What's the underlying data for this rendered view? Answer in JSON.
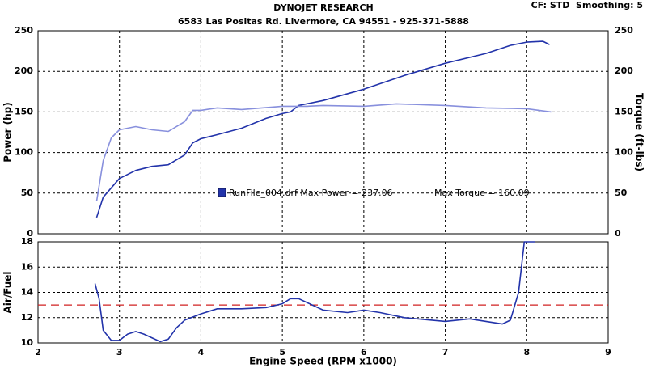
{
  "header": {
    "title": "DYNOJET RESEARCH",
    "address": "6583 Las Positas Rd. Livermore, CA 94551 - 925-371-5888",
    "settings": "CF: STD  Smoothing: 5"
  },
  "chart_data": [
    {
      "type": "line",
      "y_label": "Power (hp)",
      "y2_label": "Torque (ft-lbs)",
      "annotations": [
        "RunFile_004.drf Max Power = 237.06",
        "Max Torque = 160.09"
      ],
      "legend_color": "#2233aa",
      "xlim": [
        2,
        9
      ],
      "ylim": [
        0,
        250
      ],
      "yticks": [
        0,
        50,
        100,
        150,
        200,
        250
      ],
      "y2lim": [
        0,
        250
      ],
      "y2ticks": [
        0,
        50,
        100,
        150,
        200,
        250
      ],
      "grid": true,
      "series": [
        {
          "color": "#2233aa",
          "x": [
            2.72,
            2.8,
            3.0,
            3.2,
            3.4,
            3.6,
            3.8,
            3.9,
            4.0,
            4.2,
            4.5,
            4.8,
            5.0,
            5.1,
            5.2,
            5.5,
            6.0,
            6.5,
            7.0,
            7.5,
            7.8,
            8.0,
            8.2,
            8.28
          ],
          "values": [
            20,
            45,
            68,
            78,
            83,
            85,
            97,
            112,
            117,
            122,
            130,
            142,
            148,
            150,
            158,
            164,
            178,
            195,
            210,
            222,
            232,
            236,
            237,
            233
          ]
        },
        {
          "color": "#8890dd",
          "axis": "y2",
          "x": [
            2.72,
            2.8,
            2.9,
            3.0,
            3.2,
            3.4,
            3.6,
            3.8,
            3.9,
            4.0,
            4.2,
            4.5,
            5.0,
            5.3,
            5.5,
            6.0,
            6.4,
            7.0,
            7.5,
            8.0,
            8.3
          ],
          "values": [
            40,
            90,
            118,
            128,
            132,
            128,
            126,
            138,
            152,
            152,
            155,
            153,
            157,
            157,
            158,
            157,
            160,
            158,
            155,
            154,
            150
          ]
        }
      ]
    },
    {
      "type": "line",
      "y_label": "Air/Fuel",
      "x_label": "Engine Speed (RPM x1000)",
      "xlim": [
        2,
        9
      ],
      "xticks": [
        2,
        3,
        4,
        5,
        6,
        7,
        8,
        9
      ],
      "ylim": [
        10,
        18
      ],
      "yticks": [
        10,
        12,
        14,
        16,
        18
      ],
      "grid": true,
      "reference_line": {
        "value": 13,
        "color": "#d02020"
      },
      "series": [
        {
          "color": "#2233aa",
          "x": [
            2.7,
            2.75,
            2.8,
            2.9,
            3.0,
            3.1,
            3.2,
            3.3,
            3.5,
            3.6,
            3.7,
            3.8,
            4.0,
            4.2,
            4.5,
            4.8,
            5.0,
            5.1,
            5.2,
            5.3,
            5.5,
            5.8,
            6.0,
            6.2,
            6.5,
            7.0,
            7.3,
            7.5,
            7.7,
            7.8,
            7.9,
            7.97,
            8.1
          ],
          "values": [
            14.7,
            13.5,
            11,
            10.2,
            10.2,
            10.7,
            10.9,
            10.7,
            10.1,
            10.3,
            11.2,
            11.8,
            12.3,
            12.7,
            12.7,
            12.8,
            13.1,
            13.5,
            13.5,
            13.2,
            12.6,
            12.4,
            12.6,
            12.4,
            12.0,
            11.7,
            11.9,
            11.7,
            11.5,
            11.8,
            14,
            18,
            18
          ]
        }
      ]
    }
  ]
}
